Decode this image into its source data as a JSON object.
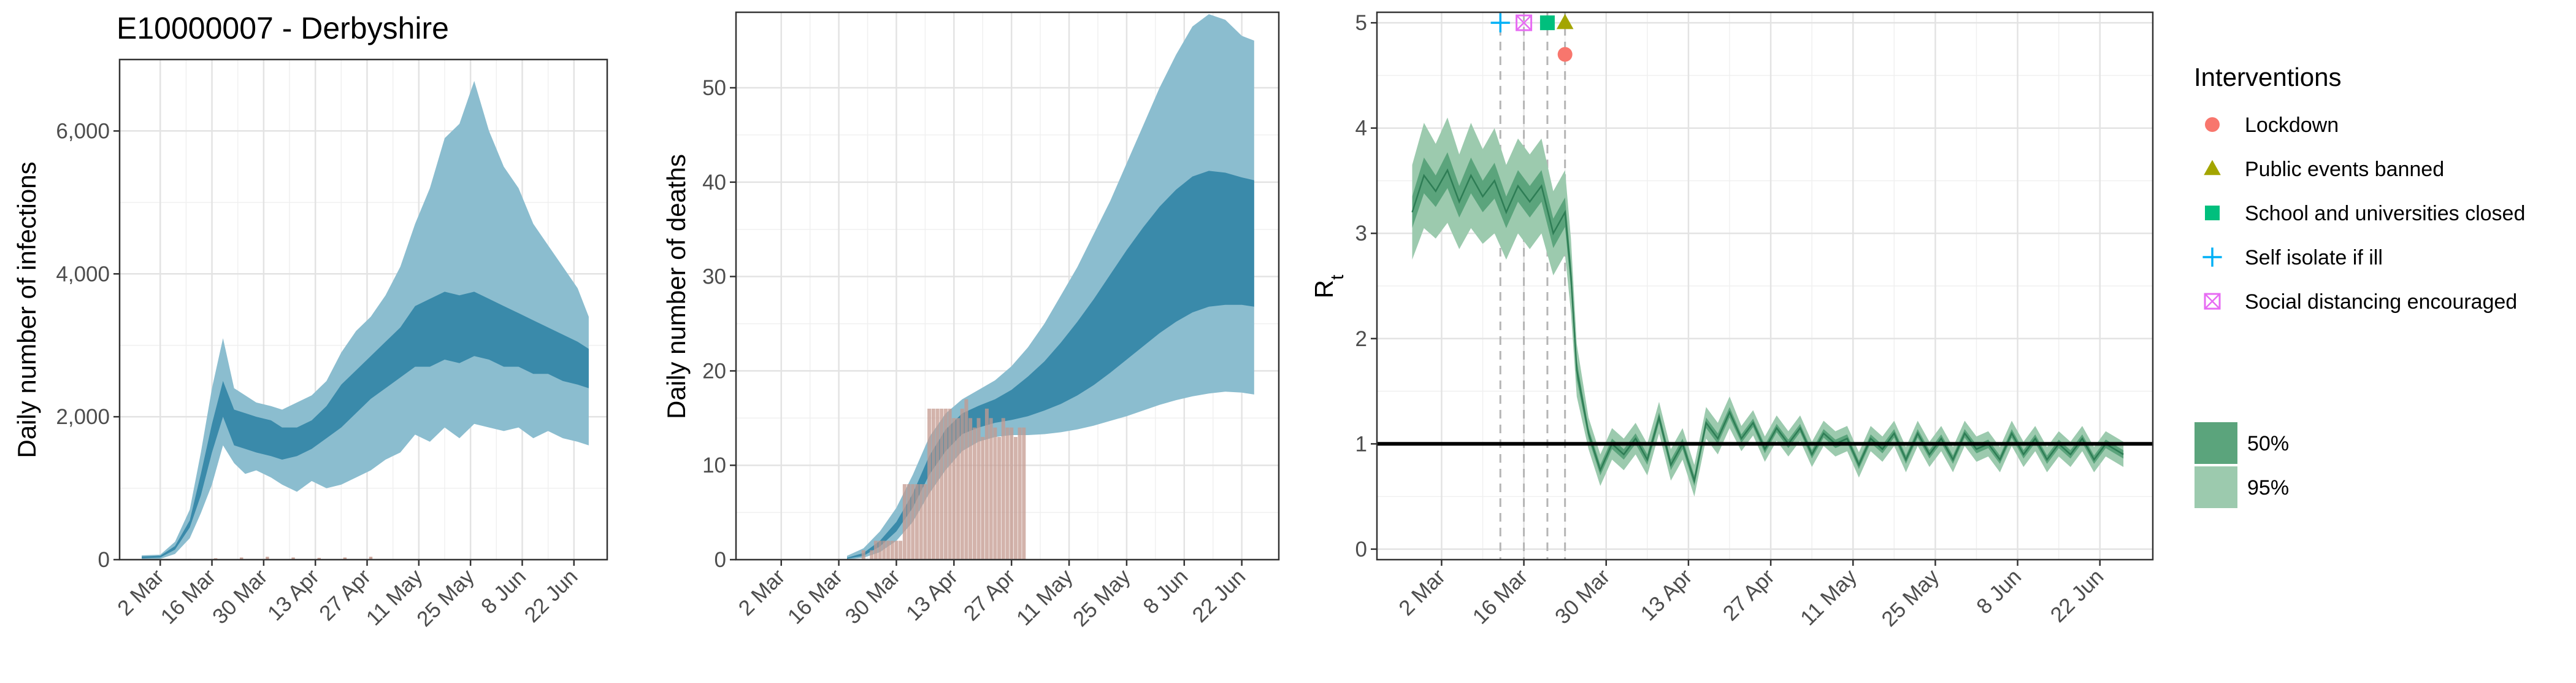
{
  "chart_data": [
    {
      "type": "area",
      "title": "E10000007 - Derbyshire",
      "ylabel": "Daily number of infections",
      "xlabel": "",
      "x_tick_labels": [
        "2 Mar",
        "16 Mar",
        "30 Mar",
        "13 Apr",
        "27 Apr",
        "11 May",
        "25 May",
        "8 Jun",
        "22 Jun"
      ],
      "x_tick_dates": [
        "2020-03-02",
        "2020-03-16",
        "2020-03-30",
        "2020-04-13",
        "2020-04-27",
        "2020-05-11",
        "2020-05-25",
        "2020-06-08",
        "2020-06-22"
      ],
      "xlim": [
        "2020-02-20",
        "2020-07-01"
      ],
      "ylim": [
        0,
        7000
      ],
      "y_ticks": [
        0,
        2000,
        4000,
        6000
      ],
      "y_tick_labels": [
        "0",
        "2,000",
        "4,000",
        "6,000"
      ],
      "grid": true,
      "series": [
        {
          "band": "95%",
          "x": [
            "2020-02-26",
            "2020-03-02",
            "2020-03-06",
            "2020-03-10",
            "2020-03-13",
            "2020-03-16",
            "2020-03-19",
            "2020-03-22",
            "2020-03-25",
            "2020-03-28",
            "2020-04-01",
            "2020-04-04",
            "2020-04-08",
            "2020-04-12",
            "2020-04-16",
            "2020-04-20",
            "2020-04-24",
            "2020-04-28",
            "2020-05-02",
            "2020-05-06",
            "2020-05-10",
            "2020-05-14",
            "2020-05-18",
            "2020-05-22",
            "2020-05-26",
            "2020-05-30",
            "2020-06-03",
            "2020-06-07",
            "2020-06-11",
            "2020-06-15",
            "2020-06-19",
            "2020-06-23",
            "2020-06-26"
          ],
          "lower": [
            0,
            10,
            80,
            300,
            650,
            1050,
            1600,
            1350,
            1200,
            1250,
            1150,
            1050,
            950,
            1100,
            1000,
            1050,
            1150,
            1250,
            1400,
            1500,
            1750,
            1650,
            1850,
            1700,
            1900,
            1850,
            1800,
            1850,
            1700,
            1800,
            1700,
            1650,
            1600
          ],
          "upper": [
            60,
            70,
            250,
            700,
            1500,
            2400,
            3100,
            2400,
            2300,
            2200,
            2150,
            2100,
            2200,
            2300,
            2500,
            2900,
            3200,
            3400,
            3700,
            4100,
            4700,
            5200,
            5900,
            6100,
            6700,
            6000,
            5500,
            5200,
            4700,
            4400,
            4100,
            3800,
            3400
          ]
        },
        {
          "band": "50%",
          "x": [
            "2020-02-26",
            "2020-03-02",
            "2020-03-06",
            "2020-03-10",
            "2020-03-13",
            "2020-03-16",
            "2020-03-19",
            "2020-03-22",
            "2020-03-25",
            "2020-03-28",
            "2020-04-01",
            "2020-04-04",
            "2020-04-08",
            "2020-04-12",
            "2020-04-16",
            "2020-04-20",
            "2020-04-24",
            "2020-04-28",
            "2020-05-02",
            "2020-05-06",
            "2020-05-10",
            "2020-05-14",
            "2020-05-18",
            "2020-05-22",
            "2020-05-26",
            "2020-05-30",
            "2020-06-03",
            "2020-06-07",
            "2020-06-11",
            "2020-06-15",
            "2020-06-19",
            "2020-06-23",
            "2020-06-26"
          ],
          "lower": [
            20,
            30,
            140,
            450,
            900,
            1500,
            2000,
            1600,
            1550,
            1500,
            1450,
            1400,
            1450,
            1550,
            1700,
            1850,
            2050,
            2250,
            2400,
            2550,
            2700,
            2700,
            2800,
            2750,
            2850,
            2800,
            2700,
            2700,
            2600,
            2600,
            2500,
            2450,
            2400
          ],
          "upper": [
            45,
            55,
            190,
            550,
            1200,
            1900,
            2500,
            2100,
            2050,
            2000,
            1950,
            1850,
            1850,
            1950,
            2150,
            2450,
            2650,
            2850,
            3050,
            3250,
            3550,
            3650,
            3750,
            3700,
            3750,
            3650,
            3550,
            3450,
            3350,
            3250,
            3150,
            3050,
            2950
          ]
        }
      ],
      "reported_cases": {
        "x": [
          "2020-03-10",
          "2020-03-17",
          "2020-03-24",
          "2020-03-31",
          "2020-04-07",
          "2020-04-14",
          "2020-04-21",
          "2020-04-28"
        ],
        "values": [
          10,
          20,
          30,
          40,
          30,
          25,
          30,
          40
        ]
      }
    },
    {
      "type": "area",
      "title": "",
      "ylabel": "Daily number of deaths",
      "xlabel": "",
      "x_tick_labels": [
        "2 Mar",
        "16 Mar",
        "30 Mar",
        "13 Apr",
        "27 Apr",
        "11 May",
        "25 May",
        "8 Jun",
        "22 Jun"
      ],
      "x_tick_dates": [
        "2020-03-02",
        "2020-03-16",
        "2020-03-30",
        "2020-04-13",
        "2020-04-27",
        "2020-05-11",
        "2020-05-25",
        "2020-06-08",
        "2020-06-22"
      ],
      "xlim": [
        "2020-02-20",
        "2020-07-01"
      ],
      "ylim": [
        0,
        58
      ],
      "y_ticks": [
        0,
        10,
        20,
        30,
        40,
        50
      ],
      "y_tick_labels": [
        "0",
        "10",
        "20",
        "30",
        "40",
        "50"
      ],
      "grid": true,
      "series": [
        {
          "band": "95%",
          "x": [
            "2020-03-18",
            "2020-03-22",
            "2020-03-26",
            "2020-03-30",
            "2020-04-03",
            "2020-04-07",
            "2020-04-11",
            "2020-04-15",
            "2020-04-19",
            "2020-04-23",
            "2020-04-27",
            "2020-05-01",
            "2020-05-05",
            "2020-05-09",
            "2020-05-13",
            "2020-05-17",
            "2020-05-21",
            "2020-05-25",
            "2020-05-29",
            "2020-06-02",
            "2020-06-06",
            "2020-06-10",
            "2020-06-14",
            "2020-06-18",
            "2020-06-22",
            "2020-06-25"
          ],
          "lower": [
            0,
            0.2,
            0.8,
            2,
            4,
            7,
            9.5,
            11.5,
            12.5,
            13,
            13.2,
            13.2,
            13.3,
            13.5,
            13.8,
            14.2,
            14.7,
            15.2,
            15.8,
            16.4,
            16.9,
            17.3,
            17.6,
            17.8,
            17.7,
            17.5
          ],
          "upper": [
            0.4,
            1.2,
            3,
            5.5,
            9,
            13,
            15.5,
            17,
            18,
            19,
            20.5,
            22.5,
            25,
            28,
            31,
            34.5,
            38,
            42,
            46,
            50,
            53.5,
            56.5,
            57.8,
            57.2,
            55.5,
            55
          ]
        },
        {
          "band": "50%",
          "x": [
            "2020-03-18",
            "2020-03-22",
            "2020-03-26",
            "2020-03-30",
            "2020-04-03",
            "2020-04-07",
            "2020-04-11",
            "2020-04-15",
            "2020-04-19",
            "2020-04-23",
            "2020-04-27",
            "2020-05-01",
            "2020-05-05",
            "2020-05-09",
            "2020-05-13",
            "2020-05-17",
            "2020-05-21",
            "2020-05-25",
            "2020-05-29",
            "2020-06-02",
            "2020-06-06",
            "2020-06-10",
            "2020-06-14",
            "2020-06-18",
            "2020-06-22",
            "2020-06-25"
          ],
          "lower": [
            0.1,
            0.4,
            1.4,
            3,
            5.5,
            9,
            11.5,
            13.3,
            14,
            14.5,
            14.8,
            15.2,
            15.8,
            16.5,
            17.4,
            18.5,
            19.8,
            21.2,
            22.6,
            24,
            25.2,
            26.2,
            26.8,
            27,
            27,
            26.8
          ],
          "upper": [
            0.2,
            0.7,
            2,
            4,
            7,
            11,
            13.8,
            15.5,
            16.3,
            17,
            18,
            19.4,
            21,
            23,
            25.2,
            27.6,
            30.2,
            32.8,
            35.2,
            37.4,
            39.2,
            40.6,
            41.2,
            41,
            40.5,
            40.2
          ]
        }
      ],
      "reported_deaths": {
        "x": [
          "2020-03-22",
          "2020-03-23",
          "2020-03-24",
          "2020-03-25",
          "2020-03-26",
          "2020-03-27",
          "2020-03-28",
          "2020-03-29",
          "2020-03-30",
          "2020-03-31",
          "2020-04-01",
          "2020-04-02",
          "2020-04-03",
          "2020-04-04",
          "2020-04-05",
          "2020-04-06",
          "2020-04-07",
          "2020-04-08",
          "2020-04-09",
          "2020-04-10",
          "2020-04-11",
          "2020-04-12",
          "2020-04-13",
          "2020-04-14",
          "2020-04-15",
          "2020-04-16",
          "2020-04-17",
          "2020-04-18",
          "2020-04-19",
          "2020-04-20",
          "2020-04-21",
          "2020-04-22",
          "2020-04-23",
          "2020-04-24",
          "2020-04-25",
          "2020-04-26",
          "2020-04-27",
          "2020-04-28",
          "2020-04-29",
          "2020-04-30"
        ],
        "values": [
          1,
          0,
          1,
          2,
          2,
          2,
          2,
          2,
          2,
          2,
          8,
          8,
          8,
          8,
          8,
          8,
          16,
          16,
          16,
          16,
          16,
          16,
          15,
          15,
          16,
          17,
          15,
          14,
          15,
          13,
          16,
          15,
          14,
          13,
          15,
          14,
          14,
          13,
          14,
          14
        ]
      }
    },
    {
      "type": "line",
      "title": "",
      "ylabel": "R",
      "ylabel_subscript": "t",
      "xlabel": "",
      "x_tick_labels": [
        "2 Mar",
        "16 Mar",
        "30 Mar",
        "13 Apr",
        "27 Apr",
        "11 May",
        "25 May",
        "8 Jun",
        "22 Jun"
      ],
      "x_tick_dates": [
        "2020-03-02",
        "2020-03-16",
        "2020-03-30",
        "2020-04-13",
        "2020-04-27",
        "2020-05-11",
        "2020-05-25",
        "2020-06-08",
        "2020-06-22"
      ],
      "xlim": [
        "2020-02-20",
        "2020-07-01"
      ],
      "ylim": [
        -0.1,
        5.1
      ],
      "y_ticks": [
        0,
        1,
        2,
        3,
        4,
        5
      ],
      "y_tick_labels": [
        "0",
        "1",
        "2",
        "3",
        "4",
        "5"
      ],
      "grid": true,
      "reference_line": 1,
      "series": [
        {
          "name": "Rt",
          "x": [
            "2020-02-26",
            "2020-02-28",
            "2020-03-01",
            "2020-03-03",
            "2020-03-05",
            "2020-03-07",
            "2020-03-09",
            "2020-03-11",
            "2020-03-13",
            "2020-03-15",
            "2020-03-17",
            "2020-03-19",
            "2020-03-21",
            "2020-03-23",
            "2020-03-24",
            "2020-03-25",
            "2020-03-26",
            "2020-03-27",
            "2020-03-29",
            "2020-03-31",
            "2020-04-02",
            "2020-04-04",
            "2020-04-06",
            "2020-04-08",
            "2020-04-10",
            "2020-04-12",
            "2020-04-14",
            "2020-04-16",
            "2020-04-18",
            "2020-04-20",
            "2020-04-22",
            "2020-04-24",
            "2020-04-26",
            "2020-04-28",
            "2020-04-30",
            "2020-05-02",
            "2020-05-04",
            "2020-05-06",
            "2020-05-08",
            "2020-05-10",
            "2020-05-12",
            "2020-05-14",
            "2020-05-16",
            "2020-05-18",
            "2020-05-20",
            "2020-05-22",
            "2020-05-24",
            "2020-05-26",
            "2020-05-28",
            "2020-05-30",
            "2020-06-01",
            "2020-06-03",
            "2020-06-05",
            "2020-06-07",
            "2020-06-09",
            "2020-06-11",
            "2020-06-13",
            "2020-06-15",
            "2020-06-17",
            "2020-06-19",
            "2020-06-21",
            "2020-06-23",
            "2020-06-26"
          ],
          "median": [
            3.2,
            3.55,
            3.4,
            3.6,
            3.3,
            3.55,
            3.35,
            3.5,
            3.2,
            3.45,
            3.3,
            3.45,
            3.0,
            3.2,
            2.6,
            1.7,
            1.4,
            1.1,
            0.75,
            1.0,
            0.9,
            1.05,
            0.85,
            1.25,
            0.8,
            1.0,
            0.65,
            1.2,
            1.05,
            1.3,
            1.05,
            1.2,
            0.95,
            1.15,
            1.0,
            1.15,
            0.9,
            1.1,
            1.0,
            1.05,
            0.8,
            1.05,
            0.95,
            1.1,
            0.85,
            1.1,
            0.9,
            1.05,
            0.85,
            1.1,
            0.95,
            1.0,
            0.85,
            1.1,
            0.9,
            1.05,
            0.85,
            1.0,
            0.9,
            1.05,
            0.85,
            1.0,
            0.9
          ],
          "band_95_half_width": [
            0.45,
            0.5,
            0.45,
            0.5,
            0.45,
            0.5,
            0.45,
            0.5,
            0.45,
            0.45,
            0.45,
            0.45,
            0.4,
            0.4,
            0.35,
            0.25,
            0.2,
            0.15,
            0.15,
            0.15,
            0.15,
            0.15,
            0.15,
            0.15,
            0.15,
            0.15,
            0.15,
            0.15,
            0.15,
            0.15,
            0.12,
            0.12,
            0.12,
            0.12,
            0.12,
            0.12,
            0.12,
            0.12,
            0.12,
            0.12,
            0.12,
            0.12,
            0.12,
            0.12,
            0.12,
            0.12,
            0.12,
            0.12,
            0.12,
            0.12,
            0.12,
            0.12,
            0.12,
            0.12,
            0.12,
            0.12,
            0.12,
            0.12,
            0.12,
            0.12,
            0.12,
            0.12,
            0.12
          ],
          "band_50_half_width": [
            0.15,
            0.17,
            0.15,
            0.17,
            0.15,
            0.17,
            0.15,
            0.17,
            0.15,
            0.15,
            0.15,
            0.15,
            0.14,
            0.14,
            0.12,
            0.09,
            0.07,
            0.05,
            0.05,
            0.05,
            0.05,
            0.05,
            0.05,
            0.05,
            0.05,
            0.05,
            0.05,
            0.05,
            0.05,
            0.05,
            0.04,
            0.04,
            0.04,
            0.04,
            0.04,
            0.04,
            0.04,
            0.04,
            0.04,
            0.04,
            0.04,
            0.04,
            0.04,
            0.04,
            0.04,
            0.04,
            0.04,
            0.04,
            0.04,
            0.04,
            0.04,
            0.04,
            0.04,
            0.04,
            0.04,
            0.04,
            0.04,
            0.04,
            0.04,
            0.04,
            0.04,
            0.04,
            0.04
          ]
        }
      ],
      "interventions": [
        {
          "label": "Lockdown",
          "date": "2020-03-23",
          "value": 4.7,
          "color": "#f8766d",
          "shape": "circle"
        },
        {
          "label": "Public events banned",
          "date": "2020-03-23",
          "value": 5.0,
          "color": "#a3a500",
          "shape": "triangle"
        },
        {
          "label": "School and universities closed",
          "date": "2020-03-20",
          "value": 5.0,
          "color": "#00bf7d",
          "shape": "square"
        },
        {
          "label": "Self isolate if ill",
          "date": "2020-03-12",
          "value": 5.0,
          "color": "#00b0f6",
          "shape": "plus"
        },
        {
          "label": "Social distancing encouraged",
          "date": "2020-03-16",
          "value": 5.0,
          "color": "#e76bf3",
          "shape": "boxcross"
        }
      ]
    }
  ],
  "legend": {
    "interventions_title": "Interventions",
    "interventions": [
      {
        "label": "Lockdown",
        "color": "#f8766d",
        "shape": "circle"
      },
      {
        "label": "Public events banned",
        "color": "#a3a500",
        "shape": "triangle"
      },
      {
        "label": "School and universities closed",
        "color": "#00bf7d",
        "shape": "square"
      },
      {
        "label": "Self isolate if ill",
        "color": "#00b0f6",
        "shape": "plus"
      },
      {
        "label": "Social distancing encouraged",
        "color": "#e76bf3",
        "shape": "boxcross"
      }
    ],
    "bands": [
      {
        "label": "50%",
        "color": "#5ba47c"
      },
      {
        "label": "95%",
        "color": "#9ccaae"
      }
    ],
    "placement": "right"
  },
  "colors": {
    "blue_95": "#8bbdcf",
    "blue_50": "#3a8aaa",
    "deaths_bar": "#c49a8f",
    "green_95": "#9ccaae",
    "green_50": "#5ba47c",
    "green_line": "#2e7d55"
  }
}
